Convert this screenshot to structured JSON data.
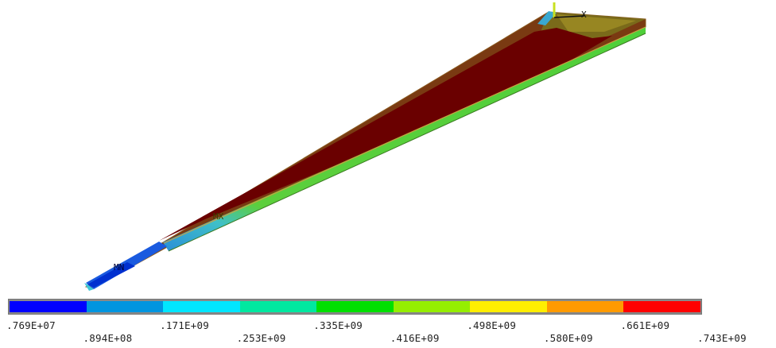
{
  "viewport": {
    "model_labels": {
      "max_marker": "MX",
      "min_marker": "MN",
      "axis_x": "X"
    }
  },
  "legend": {
    "levels": [
      {
        "label": ".769E+07",
        "color": "#0000ff"
      },
      {
        "label": ".894E+08",
        "color": "#0095e0"
      },
      {
        "label": ".171E+09",
        "color": "#00e6ff"
      },
      {
        "label": ".253E+09",
        "color": "#00e8a0"
      },
      {
        "label": ".335E+09",
        "color": "#00e000"
      },
      {
        "label": ".416E+09",
        "color": "#95ee00"
      },
      {
        "label": ".498E+09",
        "color": "#ffee00"
      },
      {
        "label": ".580E+09",
        "color": "#ff9a00"
      },
      {
        "label": ".661E+09",
        "color": "#ff0000"
      },
      {
        "label": ".743E+09",
        "color": null
      }
    ]
  }
}
